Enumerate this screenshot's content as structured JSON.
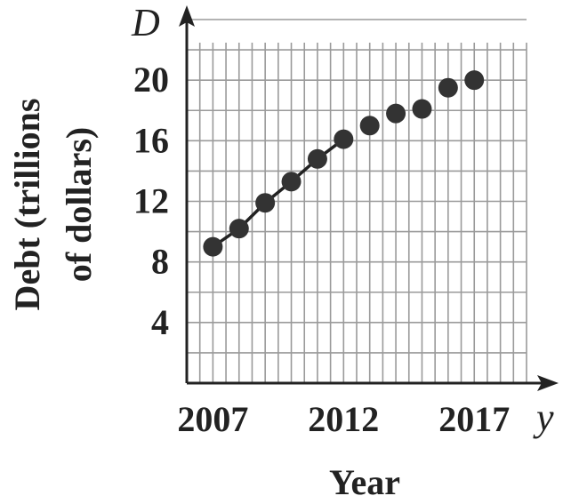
{
  "chart_data": {
    "type": "line",
    "xlabel": "Year",
    "ylabel_line1": "Debt (trillions",
    "ylabel_line2": "of dollars)",
    "x_axis_variable": "y",
    "y_axis_variable": "D",
    "x_tick_labels": [
      "2007",
      "2012",
      "2017"
    ],
    "y_tick_labels": [
      "4",
      "8",
      "12",
      "16",
      "20"
    ],
    "xlim": [
      2006,
      2019
    ],
    "ylim": [
      0,
      24
    ],
    "grid": true,
    "series": [
      {
        "x": [
          2007,
          2008,
          2009,
          2010,
          2011,
          2012,
          2013,
          2014,
          2015,
          2016,
          2017
        ],
        "y": [
          9.0,
          10.2,
          11.9,
          13.3,
          14.8,
          16.1,
          17.0,
          17.8,
          18.1,
          19.5,
          20.0
        ]
      }
    ],
    "line_segment_through_index": 5,
    "colors": {
      "marker": "#333333",
      "line": "#222222",
      "grid": "#9a9a9a",
      "axis": "#222222"
    }
  }
}
